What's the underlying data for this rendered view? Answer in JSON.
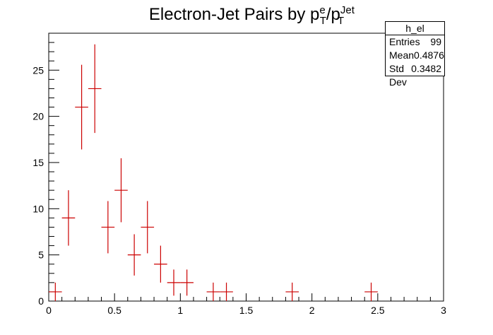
{
  "title": {
    "main": "Electron-Jet Pairs by p",
    "sup1": "e",
    "sub1": "T",
    "mid": "/p",
    "sup2": "Jet",
    "sub2": "T"
  },
  "stats": {
    "name": "h_el",
    "rows": [
      {
        "label": "Entries",
        "value": "99"
      },
      {
        "label": "Mean",
        "value": "0.4876"
      },
      {
        "label": "Std Dev",
        "value": "0.3482"
      }
    ]
  },
  "chart_data": {
    "type": "scatter",
    "title": "Electron-Jet Pairs by p_T^e/p_T^Jet",
    "xlabel": "",
    "ylabel": "",
    "xlim": [
      0,
      3
    ],
    "ylim": [
      0,
      29
    ],
    "bin_width": 0.1,
    "x_ticks": [
      0,
      0.5,
      1,
      1.5,
      2,
      2.5,
      3
    ],
    "x_tick_labels": [
      "0",
      "0.5",
      "1",
      "1.5",
      "2",
      "2.5",
      "3"
    ],
    "y_ticks": [
      0,
      5,
      10,
      15,
      20,
      25
    ],
    "y_tick_labels": [
      "0",
      "5",
      "10",
      "15",
      "20",
      "25"
    ],
    "color": "#cc0000",
    "points": [
      {
        "x": 0.05,
        "y": 1
      },
      {
        "x": 0.15,
        "y": 9
      },
      {
        "x": 0.25,
        "y": 21
      },
      {
        "x": 0.35,
        "y": 23
      },
      {
        "x": 0.45,
        "y": 8
      },
      {
        "x": 0.55,
        "y": 12
      },
      {
        "x": 0.65,
        "y": 5
      },
      {
        "x": 0.75,
        "y": 8
      },
      {
        "x": 0.85,
        "y": 4
      },
      {
        "x": 0.95,
        "y": 2
      },
      {
        "x": 1.05,
        "y": 2
      },
      {
        "x": 1.25,
        "y": 1
      },
      {
        "x": 1.35,
        "y": 1
      },
      {
        "x": 1.85,
        "y": 1
      },
      {
        "x": 2.45,
        "y": 1
      }
    ]
  }
}
